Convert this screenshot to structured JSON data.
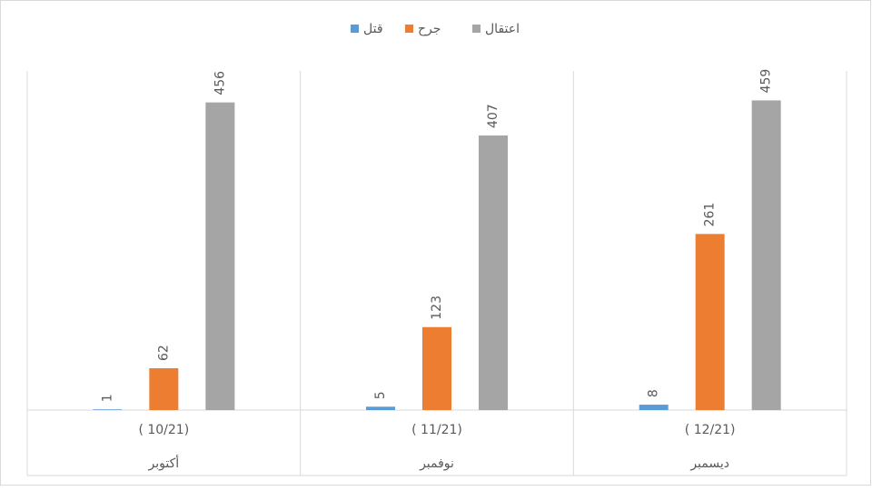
{
  "chart_data": {
    "type": "bar",
    "categories": [
      [
        "( 10/21)",
        "أكتوبر"
      ],
      [
        "( 11/21)",
        "نوفمبر"
      ],
      [
        "( 12/21)",
        "ديسمبر"
      ]
    ],
    "series": [
      {
        "name": "قتل",
        "color": "#5b9bd5",
        "values": [
          1,
          5,
          8
        ]
      },
      {
        "name": "جرح",
        "color": "#ed7d31",
        "values": [
          62,
          123,
          261
        ]
      },
      {
        "name": "اعتقال",
        "color": "#a5a5a5",
        "values": [
          456,
          407,
          459
        ]
      }
    ],
    "ylim": [
      0,
      500
    ]
  }
}
